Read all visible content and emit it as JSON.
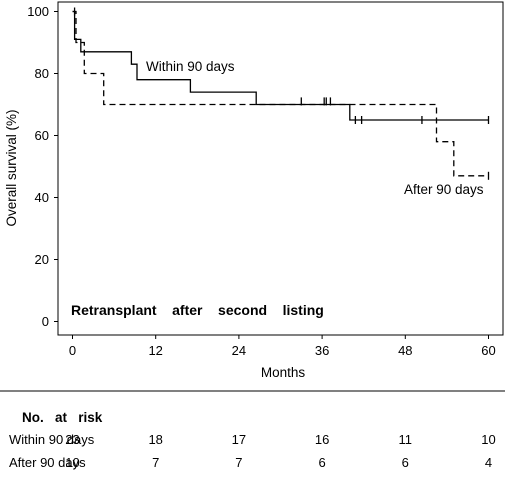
{
  "chart_data": {
    "type": "line",
    "ylabel": "Overall survival (%)",
    "xlabel": "Months",
    "xlim": [
      0,
      60
    ],
    "ylim": [
      0,
      100
    ],
    "xticks": [
      0,
      12,
      24,
      36,
      48,
      60
    ],
    "yticks": [
      0,
      20,
      40,
      60,
      80,
      100
    ],
    "panel_label": "Retransplant    after    second    listing",
    "series": [
      {
        "name": "Within 90 days",
        "style": "solid",
        "steps": [
          [
            0,
            100
          ],
          [
            0.3,
            91
          ],
          [
            1.2,
            87
          ],
          [
            8.5,
            83
          ],
          [
            9.3,
            78
          ],
          [
            17,
            74
          ],
          [
            26.5,
            70
          ],
          [
            40,
            65
          ],
          [
            60,
            65
          ]
        ],
        "censors": [
          [
            33,
            71
          ],
          [
            36.3,
            71
          ],
          [
            36.6,
            71
          ],
          [
            37.2,
            71
          ],
          [
            40.8,
            65
          ],
          [
            41.7,
            65
          ],
          [
            50.4,
            65
          ],
          [
            60,
            65
          ]
        ]
      },
      {
        "name": "After 90 days",
        "style": "dashed",
        "steps": [
          [
            0,
            100
          ],
          [
            0.5,
            90
          ],
          [
            1.7,
            80
          ],
          [
            4.5,
            70
          ],
          [
            52.5,
            58
          ],
          [
            55,
            47
          ],
          [
            60,
            47
          ]
        ],
        "censors": [
          [
            0.3,
            100
          ],
          [
            60,
            47
          ]
        ]
      }
    ],
    "annotations": {
      "within_label": "Within 90 days",
      "after_label": "After 90 days"
    },
    "risk_table": {
      "title": "No.   at   risk",
      "rows": [
        {
          "label": "Within 90 days",
          "values": [
            23,
            18,
            17,
            16,
            11,
            10
          ]
        },
        {
          "label": "After 90 days",
          "values": [
            10,
            7,
            7,
            6,
            6,
            4
          ]
        }
      ]
    }
  }
}
